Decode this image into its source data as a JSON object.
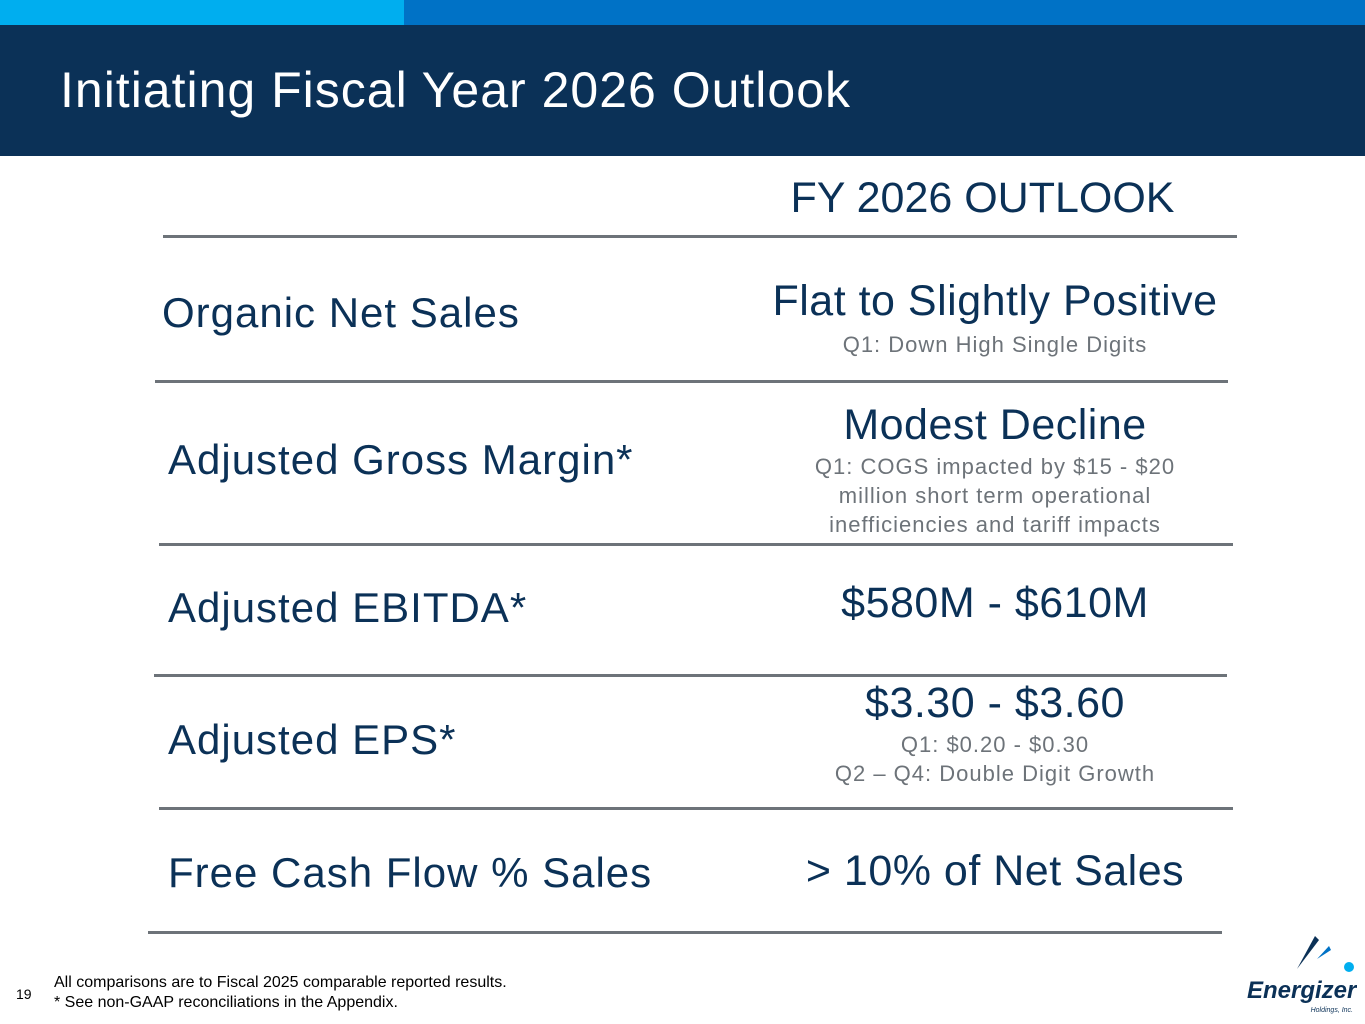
{
  "header": {
    "title": "Initiating Fiscal Year 2026 Outlook"
  },
  "table": {
    "column_header": "FY 2026 OUTLOOK",
    "rows": [
      {
        "label": "Organic Net Sales",
        "value": "Flat to Slightly Positive",
        "notes": [
          "Q1: Down High Single Digits"
        ]
      },
      {
        "label": "Adjusted Gross Margin*",
        "value": "Modest Decline",
        "notes": [
          "Q1: COGS impacted by $15 - $20",
          "million short term operational",
          "inefficiencies and tariff impacts"
        ]
      },
      {
        "label": "Adjusted EBITDA*",
        "value": "$580M - $610M",
        "notes": []
      },
      {
        "label": "Adjusted EPS*",
        "value": "$3.30 - $3.60",
        "notes": [
          "Q1: $0.20 - $0.30",
          "Q2 – Q4: Double Digit Growth"
        ]
      },
      {
        "label": "Free Cash Flow % Sales",
        "value": "> 10% of Net Sales",
        "notes": []
      }
    ]
  },
  "footer": {
    "page_number": "19",
    "notes": [
      "All comparisons are to Fiscal 2025 comparable reported results.",
      "* See non-GAAP reconciliations in the Appendix."
    ]
  },
  "logo": {
    "name": "Energizer",
    "subtitle": "Holdings, Inc."
  },
  "colors": {
    "navy": "#0b3157",
    "blue": "#0072c6",
    "cyan": "#00aeef",
    "gray": "#6d7379"
  }
}
